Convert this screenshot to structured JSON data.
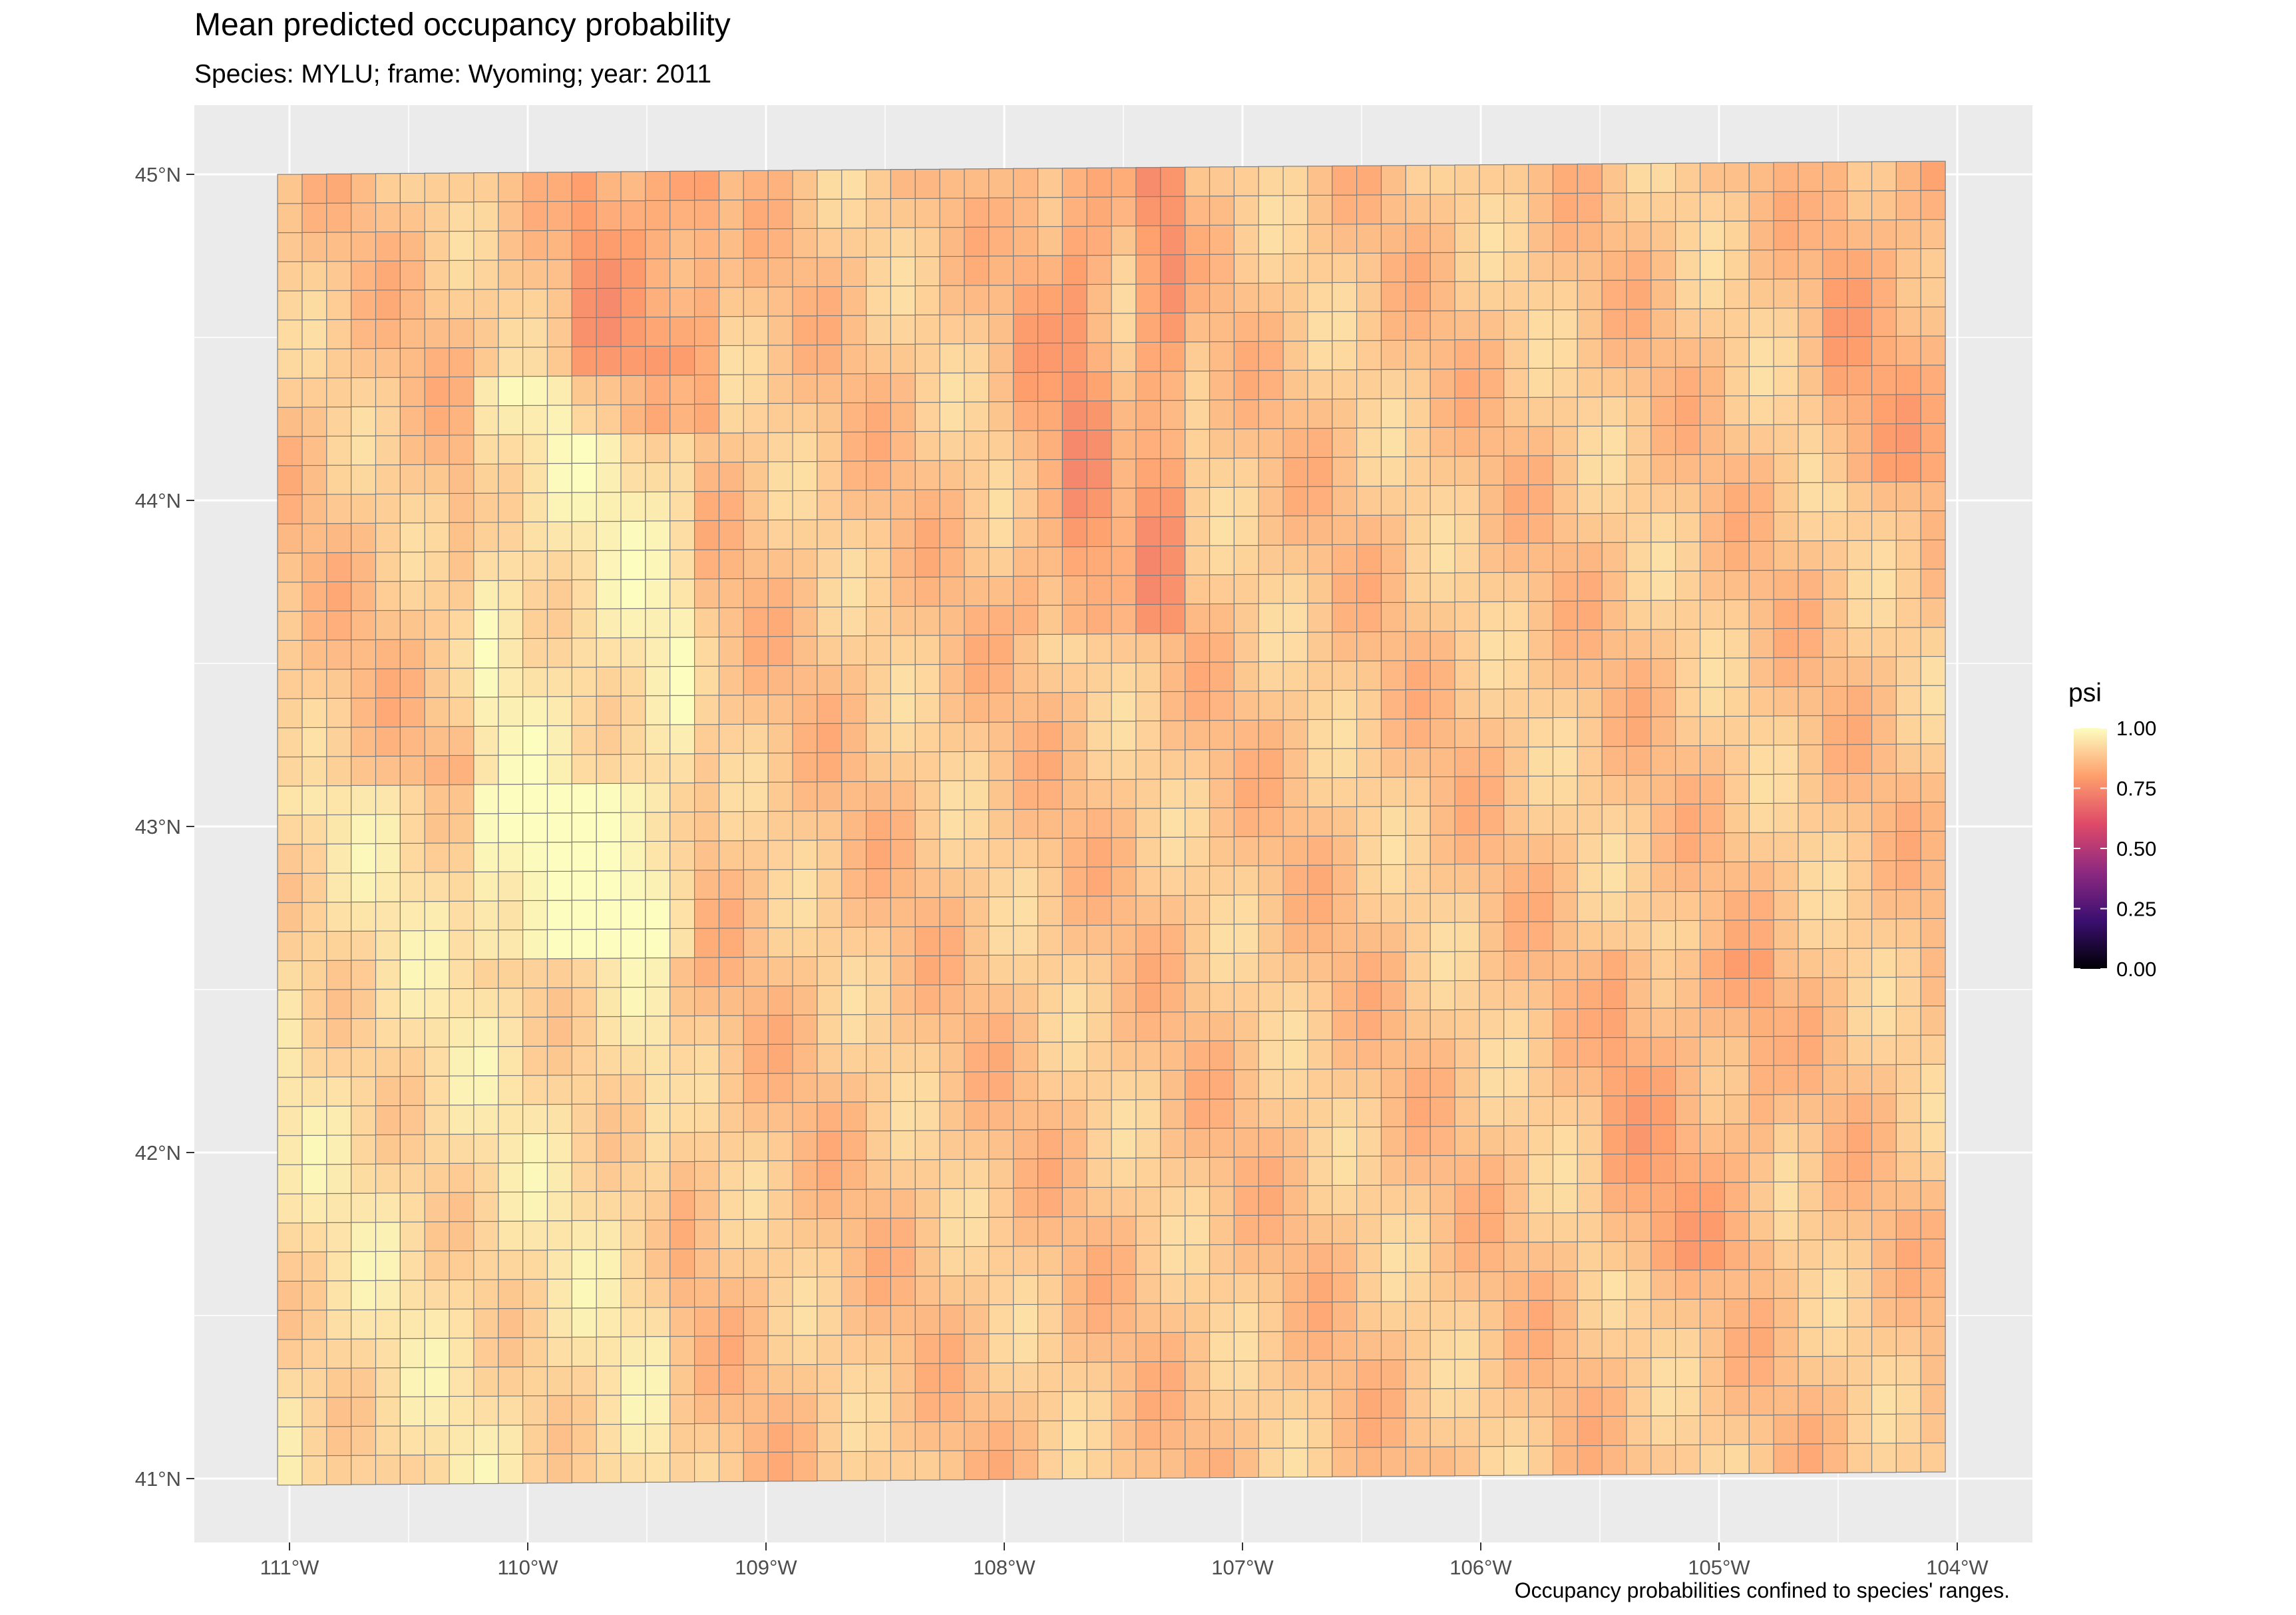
{
  "title": "Mean predicted occupancy probability",
  "subtitle": "Species: MYLU; frame: Wyoming; year: 2011",
  "caption": "Occupancy probabilities confined to species' ranges.",
  "chart_data": {
    "type": "heatmap",
    "title": "Mean predicted occupancy probability",
    "subtitle": "Species: MYLU; frame: Wyoming; year: 2011",
    "x_axis": {
      "ticks": [
        "111°W",
        "110°W",
        "109°W",
        "108°W",
        "107°W",
        "106°W",
        "105°W",
        "104°W"
      ],
      "values": [
        -111,
        -110,
        -109,
        -108,
        -107,
        -106,
        -105,
        -104
      ],
      "range": [
        -111.4,
        -103.7
      ]
    },
    "y_axis": {
      "ticks": [
        "41°N",
        "42°N",
        "43°N",
        "44°N",
        "45°N"
      ],
      "values": [
        41,
        42,
        43,
        44,
        45
      ],
      "range": [
        40.8,
        45.2
      ]
    },
    "legend": {
      "title": "psi",
      "placement": "right",
      "labels": [
        "1.00",
        "0.75",
        "0.50",
        "0.25",
        "0.00"
      ],
      "values": [
        1.0,
        0.75,
        0.5,
        0.25,
        0.0
      ],
      "colors": [
        "#fcfdbf",
        "#fe9f6d",
        "#de4968",
        "#8c2981",
        "#3b0f70",
        "#000004"
      ]
    },
    "grid": true,
    "psi_range_shown": [
      0.7,
      1.0
    ],
    "bands": [
      {
        "name": "western light band",
        "lon": [
          -110.3,
          -109.3
        ],
        "lat": [
          42.5,
          44.3
        ],
        "psi": 0.98
      },
      {
        "name": "big horn ridge",
        "lon": [
          -108.1,
          -107.3
        ],
        "lat": [
          43.6,
          45.0
        ],
        "psi": 0.78
      },
      {
        "name": "eastern ridge",
        "lon": [
          -105.5,
          -104.8
        ],
        "lat": [
          41.6,
          42.6
        ],
        "psi": 0.86
      }
    ]
  }
}
